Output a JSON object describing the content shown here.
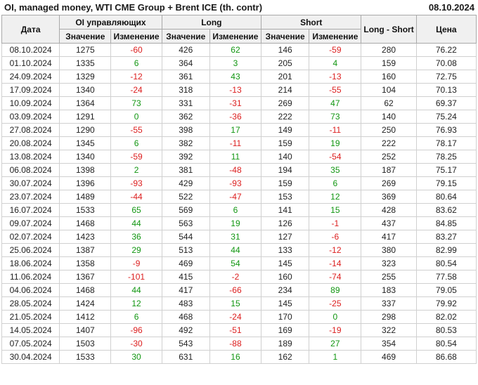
{
  "title": "OI, managed money, WTI CME Group + Brent ICE (th. contr)",
  "report_date": "08.10.2024",
  "colors": {
    "positive": "#119611",
    "negative": "#dc1e1e",
    "header_bg": "#f0f0f0",
    "header_border": "#a9a9a9",
    "grid_border": "#d0d0d0"
  },
  "table": {
    "group_headers": {
      "date": "Дата",
      "oi": "OI управляющих",
      "long": "Long",
      "short": "Short",
      "long_short": "Long - Short",
      "price": "Цена"
    },
    "sub_headers": {
      "value": "Значение",
      "change": "Изменение"
    }
  },
  "chart_data": {
    "type": "table",
    "title": "OI, managed money, WTI CME Group + Brent ICE (th. contr)",
    "columns": [
      "Дата",
      "OI Значение",
      "OI Изменение",
      "Long Значение",
      "Long Изменение",
      "Short Значение",
      "Short Изменение",
      "Long - Short",
      "Цена"
    ],
    "rows": [
      [
        "08.10.2024",
        1275,
        -60,
        426,
        62,
        146,
        -59,
        280,
        76.22
      ],
      [
        "01.10.2024",
        1335,
        6,
        364,
        3,
        205,
        4,
        159,
        70.08
      ],
      [
        "24.09.2024",
        1329,
        -12,
        361,
        43,
        201,
        -13,
        160,
        72.75
      ],
      [
        "17.09.2024",
        1340,
        -24,
        318,
        -13,
        214,
        -55,
        104,
        70.13
      ],
      [
        "10.09.2024",
        1364,
        73,
        331,
        -31,
        269,
        47,
        62,
        69.37
      ],
      [
        "03.09.2024",
        1291,
        0,
        362,
        -36,
        222,
        73,
        140,
        75.24
      ],
      [
        "27.08.2024",
        1290,
        -55,
        398,
        17,
        149,
        -11,
        250,
        76.93
      ],
      [
        "20.08.2024",
        1345,
        6,
        382,
        -11,
        159,
        19,
        222,
        78.17
      ],
      [
        "13.08.2024",
        1340,
        -59,
        392,
        11,
        140,
        -54,
        252,
        78.25
      ],
      [
        "06.08.2024",
        1398,
        2,
        381,
        -48,
        194,
        35,
        187,
        75.17
      ],
      [
        "30.07.2024",
        1396,
        -93,
        429,
        -93,
        159,
        6,
        269,
        79.15
      ],
      [
        "23.07.2024",
        1489,
        -44,
        522,
        -47,
        153,
        12,
        369,
        80.64
      ],
      [
        "16.07.2024",
        1533,
        65,
        569,
        6,
        141,
        15,
        428,
        83.62
      ],
      [
        "09.07.2024",
        1468,
        44,
        563,
        19,
        126,
        -1,
        437,
        84.85
      ],
      [
        "02.07.2024",
        1423,
        36,
        544,
        31,
        127,
        -6,
        417,
        83.27
      ],
      [
        "25.06.2024",
        1387,
        29,
        513,
        44,
        133,
        -12,
        380,
        82.99
      ],
      [
        "18.06.2024",
        1358,
        -9,
        469,
        54,
        145,
        -14,
        323,
        80.54
      ],
      [
        "11.06.2024",
        1367,
        -101,
        415,
        -2,
        160,
        -74,
        255,
        77.58
      ],
      [
        "04.06.2024",
        1468,
        44,
        417,
        -66,
        234,
        89,
        183,
        79.05
      ],
      [
        "28.05.2024",
        1424,
        12,
        483,
        15,
        145,
        -25,
        337,
        79.92
      ],
      [
        "21.05.2024",
        1412,
        6,
        468,
        -24,
        170,
        0,
        298,
        82.02
      ],
      [
        "14.05.2024",
        1407,
        -96,
        492,
        -51,
        169,
        -19,
        322,
        80.53
      ],
      [
        "07.05.2024",
        1503,
        -30,
        543,
        -88,
        189,
        27,
        354,
        80.54
      ],
      [
        "30.04.2024",
        1533,
        30,
        631,
        16,
        162,
        1,
        469,
        86.68
      ]
    ]
  }
}
